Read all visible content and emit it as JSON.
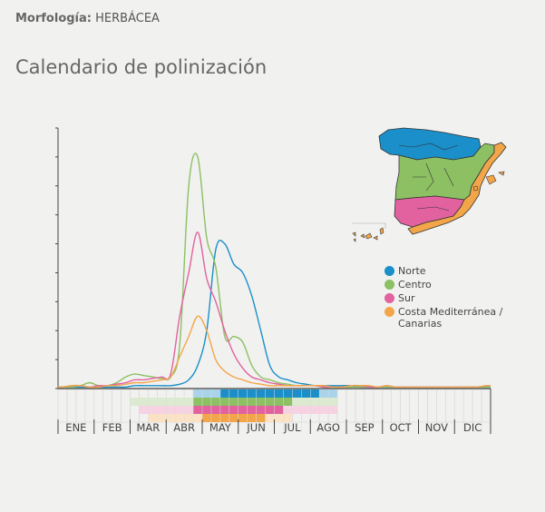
{
  "header": {
    "morph_label": "Morfología:",
    "morph_value": "HERBÁCEA",
    "title": "Calendario de polinización"
  },
  "legend": [
    {
      "name": "Norte",
      "color": "#1a8fc9"
    },
    {
      "name": "Centro",
      "color": "#8cc063"
    },
    {
      "name": "Sur",
      "color": "#e1629e"
    },
    {
      "name": "Costa Mediterránea /",
      "name2": "Canarias",
      "color": "#f3a649"
    }
  ],
  "months": [
    "ENE",
    "FEB",
    "MAR",
    "ABR",
    "MAY",
    "JUN",
    "JUL",
    "AGO",
    "SEP",
    "OCT",
    "NOV",
    "DIC"
  ],
  "chart_data": {
    "type": "line",
    "title": "Calendario de polinización",
    "xlabel": "",
    "ylabel": "",
    "x_categories": [
      "ENE",
      "FEB",
      "MAR",
      "ABR",
      "MAY",
      "JUN",
      "JUL",
      "AGO",
      "SEP",
      "OCT",
      "NOV",
      "DIC"
    ],
    "x_resolution": "week (48 points, 4 per month)",
    "y_ticks_count": 9,
    "y_tick_labels": [],
    "ylim": [
      0,
      9
    ],
    "grid": false,
    "legend_position": "right",
    "series": [
      {
        "name": "Norte",
        "color": "#1a8fc9",
        "values": [
          0.05,
          0.05,
          0.05,
          0.05,
          0.05,
          0.05,
          0.05,
          0.05,
          0.1,
          0.1,
          0.1,
          0.1,
          0.1,
          0.15,
          0.3,
          0.8,
          2.0,
          4.8,
          5.0,
          4.3,
          4.0,
          3.2,
          2.0,
          0.8,
          0.4,
          0.3,
          0.2,
          0.15,
          0.1,
          0.1,
          0.1,
          0.1,
          0.1,
          0.05,
          0.05,
          0.05,
          0.05,
          0.05,
          0.05,
          0.05,
          0.05,
          0.05,
          0.05,
          0.05,
          0.05,
          0.05,
          0.05,
          0.05
        ]
      },
      {
        "name": "Centro",
        "color": "#8cc063",
        "values": [
          0.05,
          0.05,
          0.1,
          0.2,
          0.1,
          0.1,
          0.2,
          0.4,
          0.5,
          0.45,
          0.4,
          0.35,
          0.4,
          1.5,
          7.0,
          8.0,
          5.2,
          4.2,
          1.8,
          1.8,
          1.6,
          0.8,
          0.4,
          0.3,
          0.2,
          0.15,
          0.1,
          0.1,
          0.1,
          0.05,
          0.05,
          0.05,
          0.05,
          0.05,
          0.05,
          0.05,
          0.05,
          0.05,
          0.05,
          0.05,
          0.05,
          0.05,
          0.05,
          0.05,
          0.05,
          0.05,
          0.05,
          0.05
        ]
      },
      {
        "name": "Sur",
        "color": "#e1629e",
        "values": [
          0.05,
          0.1,
          0.1,
          0.05,
          0.1,
          0.1,
          0.15,
          0.2,
          0.3,
          0.3,
          0.35,
          0.4,
          0.5,
          2.5,
          4.0,
          5.4,
          3.8,
          3.0,
          2.0,
          1.2,
          0.7,
          0.4,
          0.3,
          0.2,
          0.15,
          0.1,
          0.1,
          0.1,
          0.1,
          0.05,
          0.05,
          0.05,
          0.1,
          0.1,
          0.05,
          0.05,
          0.1,
          0.05,
          0.05,
          0.05,
          0.05,
          0.05,
          0.05,
          0.05,
          0.05,
          0.05,
          0.05,
          0.1
        ]
      },
      {
        "name": "Costa Mediterránea / Canarias",
        "color": "#f3a649",
        "values": [
          0.05,
          0.1,
          0.1,
          0.05,
          0.05,
          0.1,
          0.1,
          0.15,
          0.2,
          0.2,
          0.25,
          0.3,
          0.4,
          1.1,
          1.8,
          2.5,
          2.0,
          1.0,
          0.6,
          0.4,
          0.3,
          0.2,
          0.15,
          0.1,
          0.1,
          0.1,
          0.1,
          0.1,
          0.1,
          0.1,
          0.05,
          0.05,
          0.1,
          0.1,
          0.1,
          0.05,
          0.1,
          0.05,
          0.05,
          0.05,
          0.05,
          0.05,
          0.05,
          0.05,
          0.05,
          0.05,
          0.05,
          0.1
        ]
      }
    ],
    "calendar_bands": [
      {
        "name": "Norte",
        "light_weeks": [
          [
            15,
            17
          ],
          [
            29,
            30
          ]
        ],
        "dark_weeks": [
          [
            18,
            28
          ]
        ],
        "dark": "#1a8fc9",
        "light": "#a9d3ea"
      },
      {
        "name": "Centro",
        "light_weeks": [
          [
            8,
            14
          ],
          [
            26,
            30
          ]
        ],
        "dark_weeks": [
          [
            15,
            25
          ]
        ],
        "dark": "#8cc063",
        "light": "#dcebd0"
      },
      {
        "name": "Sur",
        "light_weeks": [
          [
            9,
            14
          ],
          [
            25,
            30
          ]
        ],
        "dark_weeks": [
          [
            15,
            24
          ]
        ],
        "dark": "#e1629e",
        "light": "#f6d2e2"
      },
      {
        "name": "Costa Mediterránea / Canarias",
        "light_weeks": [
          [
            10,
            15
          ],
          [
            23,
            25
          ]
        ],
        "dark_weeks": [
          [
            16,
            22
          ]
        ],
        "dark": "#f3a649",
        "light": "#fbe2c4"
      }
    ]
  }
}
